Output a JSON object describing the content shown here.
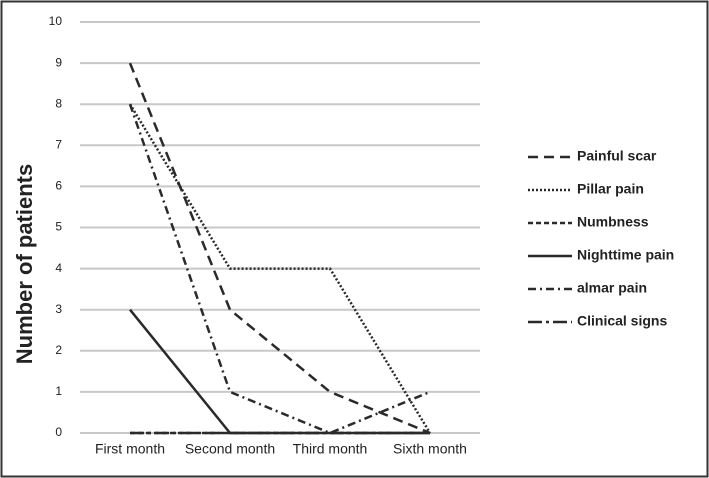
{
  "chart_data": {
    "type": "line",
    "y_label": "Number of patients",
    "categories": [
      "First month",
      "Second month",
      "Third month",
      "Sixth month"
    ],
    "ylim": [
      0,
      10
    ],
    "yticks": [
      0,
      1,
      2,
      3,
      4,
      5,
      6,
      7,
      8,
      9,
      10
    ],
    "grid": true,
    "series": [
      {
        "name": "Painful scar",
        "color": "#2a2a2a",
        "dash": "10,6",
        "values": [
          9,
          3,
          1,
          0
        ]
      },
      {
        "name": "Pillar pain",
        "color": "#2a2a2a",
        "dash": "2,2",
        "values": [
          8,
          4,
          4,
          0
        ]
      },
      {
        "name": "Numbness",
        "color": "#2a2a2a",
        "dash": "5,3",
        "values": [
          0,
          0,
          0,
          0
        ]
      },
      {
        "name": "Nighttime pain",
        "color": "#2a2a2a",
        "dash": "none",
        "values": [
          3,
          0,
          0,
          0
        ]
      },
      {
        "name": "almar pain",
        "color": "#2a2a2a",
        "dash": "8,4,2,4",
        "values": [
          8,
          1,
          0,
          1
        ]
      },
      {
        "name": "Clinical signs",
        "color": "#2a2a2a",
        "dash": "14,4,3,4",
        "values": [
          0,
          0,
          0,
          0
        ]
      }
    ]
  }
}
